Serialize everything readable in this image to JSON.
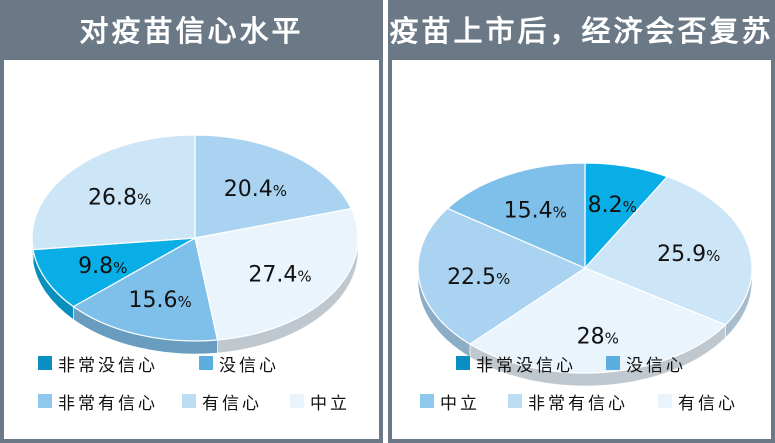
{
  "chart_data": [
    {
      "type": "pie",
      "title": "对疫苗信心水平",
      "slices": [
        {
          "label": "有信心",
          "value": 20.4,
          "color": "#a9d3f0"
        },
        {
          "label": "中立",
          "value": 27.4,
          "color": "#eaf4fc"
        },
        {
          "label": "非常有信心",
          "value": 15.6,
          "color": "#7fc0ea"
        },
        {
          "label": "非常没信心",
          "value": 9.8,
          "color": "#0aaee6"
        },
        {
          "label": "没信心",
          "value": 26.8,
          "color": "#cde6f7"
        }
      ],
      "legend": [
        {
          "label": "非常没信心",
          "color": "#0b8fc2"
        },
        {
          "label": "没信心",
          "color": "#5aaee0"
        },
        {
          "label": "非常有信心",
          "color": "#8ec8ec"
        },
        {
          "label": "有信心",
          "color": "#bcdcf2"
        },
        {
          "label": "中立",
          "color": "#eaf4fc"
        }
      ],
      "legend_placement": "bottom"
    },
    {
      "type": "pie",
      "title": "疫苗上市后，经济会否复苏",
      "slices": [
        {
          "label": "非常没信心",
          "value": 8.2,
          "color": "#0aaee6"
        },
        {
          "label": "没信心",
          "value": 25.9,
          "color": "#cde6f7"
        },
        {
          "label": "中立",
          "value": 28,
          "color": "#eaf4fc"
        },
        {
          "label": "非常有信心",
          "value": 22.5,
          "color": "#a9d3f0"
        },
        {
          "label": "有信心",
          "value": 15.4,
          "color": "#7fc0ea"
        }
      ],
      "legend": [
        {
          "label": "非常没信心",
          "color": "#0b8fc2"
        },
        {
          "label": "没信心",
          "color": "#5aaee0"
        },
        {
          "label": "中立",
          "color": "#8ec8ec"
        },
        {
          "label": "非常有信心",
          "color": "#bcdcf2"
        },
        {
          "label": "有信心",
          "color": "#eaf4fc"
        }
      ],
      "legend_placement": "bottom"
    }
  ]
}
